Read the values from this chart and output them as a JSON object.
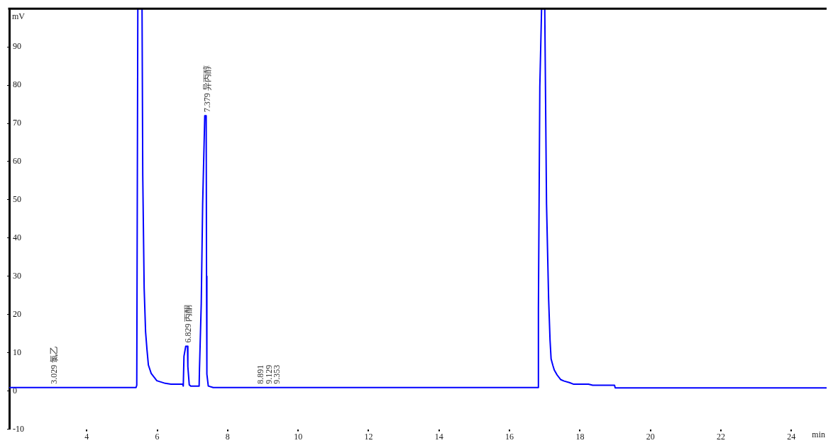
{
  "chart_data": {
    "type": "line",
    "xlabel": "min",
    "ylabel": "mV",
    "x": [
      1.8,
      5.4,
      5.42,
      5.45,
      5.57,
      5.59,
      5.63,
      5.67,
      5.71,
      5.75,
      5.83,
      5.99,
      6.23,
      6.39,
      6.72,
      6.74,
      6.76,
      6.81,
      6.86,
      6.87,
      6.91,
      6.95,
      7.19,
      7.2,
      7.25,
      7.29,
      7.35,
      7.39,
      7.4,
      7.41,
      7.45,
      7.59,
      16.81,
      16.82,
      16.86,
      16.91,
      17.0,
      17.05,
      17.11,
      17.15,
      17.18,
      17.23,
      17.27,
      17.35,
      17.45,
      17.55,
      17.7,
      17.81,
      18.24,
      18.36,
      18.98,
      19.0,
      25
    ],
    "values": [
      0.9,
      0.9,
      1.5,
      100,
      100,
      56.4,
      26.8,
      15.5,
      10.8,
      6.8,
      4.6,
      2.7,
      2.0,
      1.8,
      1.8,
      1.3,
      9.1,
      11.7,
      11.7,
      6.4,
      1.6,
      1.3,
      1.3,
      5.8,
      22.8,
      48.8,
      72.0,
      72.0,
      30,
      4.4,
      1.3,
      0.9,
      0.9,
      21.5,
      79.6,
      100,
      100,
      49,
      24,
      13.3,
      8.4,
      6.7,
      5.5,
      4.2,
      3.0,
      2.6,
      2.2,
      1.8,
      1.8,
      1.5,
      1.5,
      0.8,
      0.8
    ],
    "color": "#0000ff",
    "marker": "none",
    "line_style": "solid",
    "xlim": [
      1.8,
      25
    ],
    "xticks": [
      4,
      6,
      8,
      10,
      12,
      14,
      16,
      18,
      20,
      22,
      24
    ],
    "ylim": [
      -10,
      100
    ],
    "yticks": [
      -10,
      0,
      10,
      20,
      30,
      40,
      50,
      60,
      70,
      80,
      90
    ],
    "annotations": [
      {
        "text": "3.029 氯乙",
        "x": 3.029,
        "y": 0.9
      },
      {
        "text": "6.829 丙酮",
        "x": 6.829,
        "y": 11.7
      },
      {
        "text": "7.379 异丙醇",
        "x": 7.379,
        "y": 72
      },
      {
        "text": "8.891",
        "x": 8.891,
        "y": 0.9
      },
      {
        "text": "9.129",
        "x": 9.129,
        "y": 0.9
      },
      {
        "text": "9.353",
        "x": 9.353,
        "y": 0.9
      }
    ]
  }
}
